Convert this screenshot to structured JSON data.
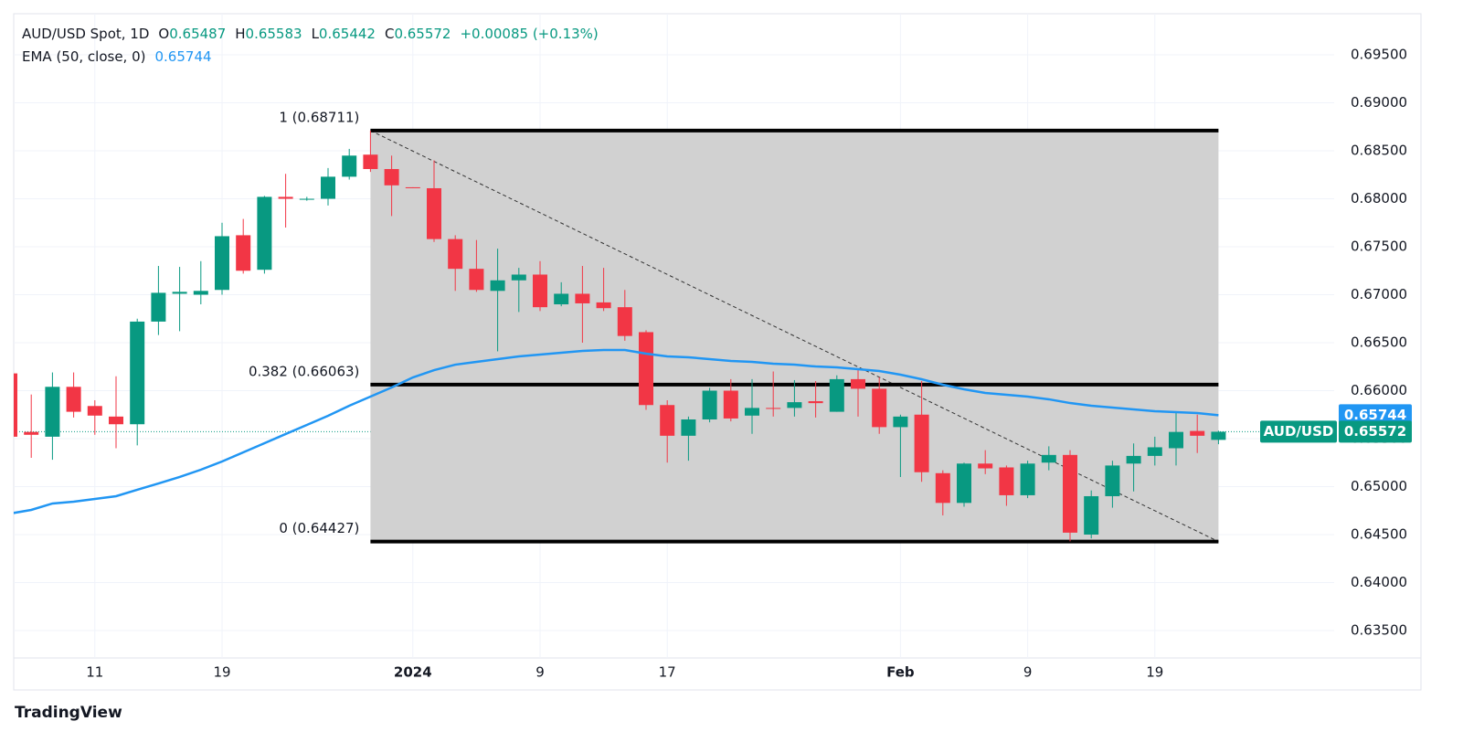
{
  "chart_data": {
    "type": "candlestick",
    "header": {
      "symbol": "AUD/USD Spot, 1D",
      "ohlc_letters": [
        "O",
        "H",
        "L",
        "C"
      ],
      "change": "+0.00085 (+0.13%)"
    },
    "categories": [
      null,
      null,
      null,
      null,
      "11",
      null,
      null,
      null,
      null,
      null,
      "19",
      null,
      null,
      null,
      null,
      null,
      null,
      null,
      null,
      "2024",
      null,
      null,
      null,
      null,
      null,
      "9",
      null,
      null,
      null,
      null,
      null,
      "17",
      null,
      null,
      null,
      null,
      null,
      null,
      null,
      null,
      null,
      null,
      "Feb",
      null,
      null,
      null,
      null,
      null,
      "9",
      null,
      null,
      null,
      null,
      null,
      "19",
      null,
      null,
      null
    ],
    "series": [
      {
        "name": "AUD/USD",
        "type": "candlestick",
        "up_color": "#089981",
        "down_color": "#f23645",
        "open": [
          0.6618,
          0.6557,
          0.6552,
          0.6604,
          0.6584,
          0.6573,
          0.6565,
          0.6672,
          0.6701,
          0.67,
          0.6705,
          0.6762,
          0.6726,
          0.6802,
          0.6799,
          0.68,
          0.6823,
          0.6846,
          0.6831,
          0.6812,
          0.6811,
          0.6758,
          0.6727,
          0.6704,
          0.6715,
          0.6721,
          0.669,
          0.6701,
          0.6692,
          0.6687,
          0.6661,
          0.6585,
          0.6553,
          0.657,
          0.66,
          0.6574,
          0.6582,
          0.6582,
          0.6589,
          0.6578,
          0.6612,
          0.6602,
          0.6562,
          0.6575,
          0.6514,
          0.6483,
          0.6524,
          0.652,
          0.6491,
          0.6525,
          0.6533,
          0.645,
          0.649,
          0.6524,
          0.6532,
          0.654,
          0.6558,
          0.65487
        ],
        "high": [
          0.6625,
          0.6596,
          0.6619,
          0.6619,
          0.659,
          0.6615,
          0.6675,
          0.673,
          0.6729,
          0.6735,
          0.6775,
          0.6779,
          0.6803,
          0.6826,
          0.6802,
          0.6832,
          0.6852,
          0.6871,
          0.6845,
          0.6812,
          0.684,
          0.6762,
          0.6757,
          0.6748,
          0.6728,
          0.6735,
          0.6713,
          0.673,
          0.6728,
          0.6705,
          0.6663,
          0.659,
          0.6573,
          0.6603,
          0.6612,
          0.6612,
          0.662,
          0.6611,
          0.661,
          0.6616,
          0.6623,
          0.6614,
          0.6575,
          0.661,
          0.6517,
          0.6525,
          0.6538,
          0.6522,
          0.6527,
          0.6542,
          0.6538,
          0.6496,
          0.6527,
          0.6545,
          0.6552,
          0.6578,
          0.6575,
          0.65583
        ],
        "low": [
          0.6545,
          0.653,
          0.6528,
          0.6572,
          0.6554,
          0.654,
          0.6543,
          0.6658,
          0.6662,
          0.669,
          0.67,
          0.6722,
          0.6722,
          0.677,
          0.6798,
          0.6793,
          0.682,
          0.6828,
          0.6782,
          0.6811,
          0.6755,
          0.6704,
          0.6703,
          0.6641,
          0.6682,
          0.6683,
          0.6688,
          0.665,
          0.6683,
          0.6652,
          0.658,
          0.6525,
          0.6527,
          0.6567,
          0.6568,
          0.6555,
          0.6573,
          0.6573,
          0.6572,
          0.6578,
          0.6573,
          0.6555,
          0.651,
          0.6505,
          0.647,
          0.6479,
          0.6513,
          0.648,
          0.6488,
          0.6517,
          0.6443,
          0.6446,
          0.6478,
          0.6495,
          0.6522,
          0.6522,
          0.6535,
          0.65442
        ],
        "close": [
          0.6552,
          0.6554,
          0.6604,
          0.6578,
          0.6574,
          0.6565,
          0.6672,
          0.6702,
          0.6703,
          0.6704,
          0.6761,
          0.6725,
          0.6802,
          0.68,
          0.68,
          0.6823,
          0.6845,
          0.6831,
          0.6814,
          0.6811,
          0.6758,
          0.6727,
          0.6705,
          0.6715,
          0.6721,
          0.6687,
          0.6701,
          0.6691,
          0.6686,
          0.6657,
          0.6585,
          0.6553,
          0.657,
          0.66,
          0.6571,
          0.6582,
          0.6581,
          0.6588,
          0.6587,
          0.6612,
          0.6602,
          0.6562,
          0.6573,
          0.6515,
          0.6483,
          0.6524,
          0.6519,
          0.6491,
          0.6524,
          0.6533,
          0.6452,
          0.649,
          0.6522,
          0.6532,
          0.6541,
          0.6557,
          0.6553,
          0.65572
        ]
      },
      {
        "name": "EMA (50, close, 0)",
        "type": "line",
        "color": "#2196f3",
        "values": [
          0.64719,
          0.64757,
          0.64824,
          0.64843,
          0.64871,
          0.649,
          0.64967,
          0.65033,
          0.651,
          0.65176,
          0.65262,
          0.65357,
          0.65452,
          0.65548,
          0.65643,
          0.65738,
          0.65843,
          0.65938,
          0.66033,
          0.66138,
          0.66214,
          0.66271,
          0.663,
          0.66329,
          0.66357,
          0.66376,
          0.66395,
          0.66414,
          0.66424,
          0.66424,
          0.66386,
          0.66357,
          0.66348,
          0.66329,
          0.6631,
          0.663,
          0.66281,
          0.66271,
          0.66252,
          0.66243,
          0.66224,
          0.66205,
          0.66167,
          0.66119,
          0.66062,
          0.66014,
          0.65976,
          0.65957,
          0.65938,
          0.6591,
          0.65871,
          0.65843,
          0.65824,
          0.65805,
          0.65786,
          0.65776,
          0.65767,
          0.65744
        ]
      }
    ],
    "fibonacci": {
      "x_range": [
        17,
        57
      ],
      "fill": "#d1d1d1",
      "line_color": "#000000",
      "levels": [
        {
          "value": 0.68711,
          "label": "1 (0.68711)"
        },
        {
          "value": 0.66063,
          "label": "0.382 (0.66063)"
        },
        {
          "value": 0.64427,
          "label": "0 (0.64427)"
        }
      ]
    },
    "ylim": [
      0.63214,
      0.69929
    ],
    "yticks": [
      {
        "value": 0.635,
        "label": "0.63500"
      },
      {
        "value": 0.64,
        "label": "0.64000"
      },
      {
        "value": 0.645,
        "label": "0.64500"
      },
      {
        "value": 0.65,
        "label": "0.65000"
      },
      {
        "value": 0.655,
        "label": "0.65500"
      },
      {
        "value": 0.66,
        "label": "0.66000"
      },
      {
        "value": 0.665,
        "label": "0.66500"
      },
      {
        "value": 0.67,
        "label": "0.67000"
      },
      {
        "value": 0.675,
        "label": "0.67500"
      },
      {
        "value": 0.68,
        "label": "0.68000"
      },
      {
        "value": 0.685,
        "label": "0.68500"
      },
      {
        "value": 0.69,
        "label": "0.69000"
      },
      {
        "value": 0.695,
        "label": "0.69500"
      }
    ],
    "grid": true,
    "watermark": "TradingView"
  }
}
